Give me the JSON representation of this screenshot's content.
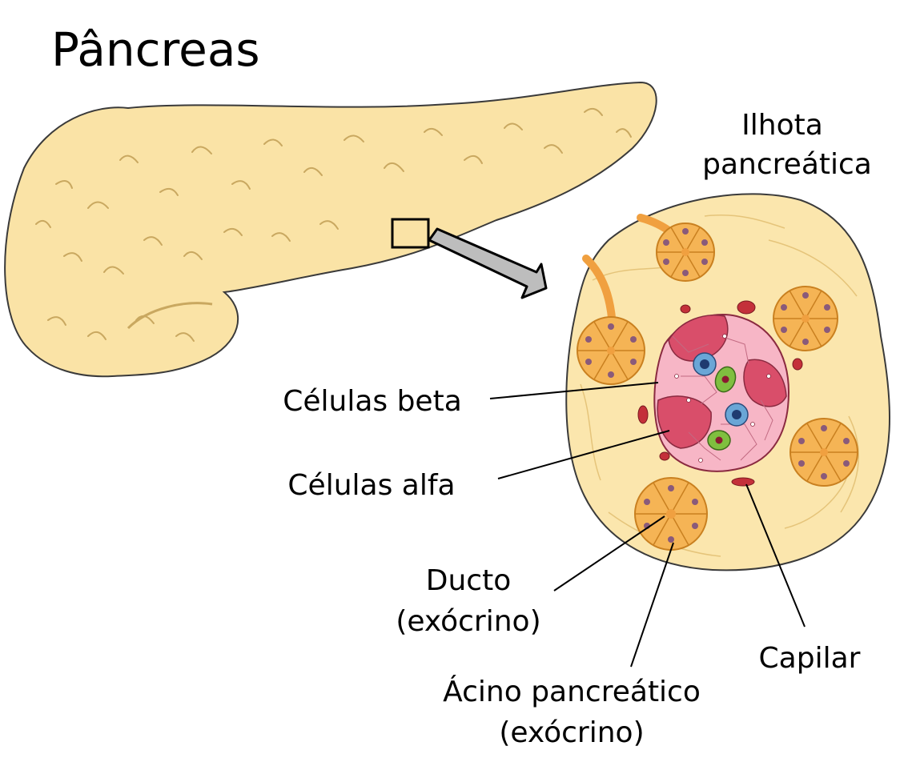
{
  "title": "Pâncreas",
  "labels": {
    "islet_line1": "Ilhota",
    "islet_line2": "pancreática",
    "beta": "Células beta",
    "alpha": "Células alfa",
    "duct_line1": "Ducto",
    "duct_line2": "(exócrino)",
    "capillary": "Capilar",
    "acinus_line1": "Ácino pancreático",
    "acinus_line2": "(exócrino)"
  },
  "colors": {
    "pancreas_fill": "#fae3a6",
    "pancreas_outline": "#3a3a3a",
    "tissue_fill": "#fbe6ad",
    "acinus_fill": "#f5b455",
    "acinus_edge": "#c98020",
    "islet_light": "#f7b6c6",
    "islet_dark": "#d94e6a",
    "beta_blue": "#6aa6d6",
    "alpha_green": "#7fbf3f",
    "capillary_red": "#c4303a",
    "duct_orange": "#f0a040",
    "arrow_gray": "#bdbdbd"
  }
}
